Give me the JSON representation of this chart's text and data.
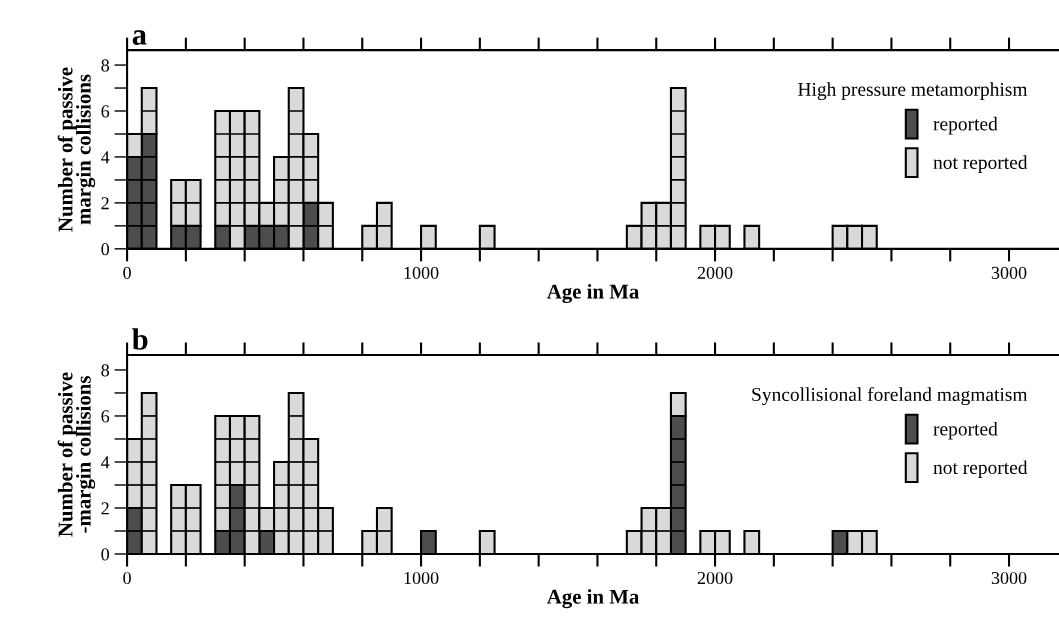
{
  "chart_data": [
    {
      "type": "bar",
      "title": "a",
      "xlabel": "Age in Ma",
      "ylabel": "Number of passive\nmargin collisions",
      "legend_title": "High pressure metamorphism",
      "legend": "right",
      "stacked": true,
      "x": [
        25,
        75,
        125,
        175,
        225,
        275,
        325,
        375,
        425,
        475,
        525,
        575,
        625,
        675,
        725,
        775,
        825,
        875,
        925,
        975,
        1025,
        1075,
        1125,
        1175,
        1225,
        1275,
        1325,
        1375,
        1425,
        1475,
        1525,
        1575,
        1625,
        1675,
        1725,
        1775,
        1825,
        1875,
        1925,
        1975,
        2025,
        2075,
        2125,
        2175,
        2225,
        2275,
        2325,
        2375,
        2425,
        2475,
        2525
      ],
      "series": [
        {
          "name": "reported",
          "color": "#4d4d4d",
          "values": [
            4,
            5,
            0,
            1,
            1,
            0,
            1,
            0,
            1,
            1,
            1,
            0,
            2,
            0,
            0,
            0,
            0,
            0,
            0,
            0,
            0,
            0,
            0,
            0,
            0,
            0,
            0,
            0,
            0,
            0,
            0,
            0,
            0,
            0,
            0,
            0,
            0,
            0,
            0,
            0,
            0,
            0,
            0,
            0,
            0,
            0,
            0,
            0,
            0,
            0,
            0
          ]
        },
        {
          "name": "not reported",
          "color": "#d9d9d9",
          "values": [
            1,
            2,
            0,
            2,
            2,
            0,
            5,
            6,
            5,
            1,
            3,
            7,
            3,
            2,
            0,
            0,
            1,
            2,
            0,
            0,
            1,
            0,
            0,
            0,
            1,
            0,
            0,
            0,
            0,
            0,
            0,
            0,
            0,
            0,
            1,
            2,
            2,
            7,
            0,
            1,
            1,
            0,
            1,
            0,
            0,
            0,
            0,
            0,
            1,
            1,
            1
          ]
        }
      ],
      "xlim": [
        0,
        3170
      ],
      "ylim": [
        0,
        8.65
      ],
      "xticks": [
        0,
        {
          "value": 200,
          "label": null
        },
        {
          "value": 400,
          "label": null
        },
        {
          "value": 600,
          "label": null
        },
        {
          "value": 800,
          "label": null
        },
        1000,
        {
          "value": 1200,
          "label": null
        },
        {
          "value": 1400,
          "label": null
        },
        {
          "value": 1600,
          "label": null
        },
        {
          "value": 1800,
          "label": null
        },
        2000,
        {
          "value": 2200,
          "label": null
        },
        {
          "value": 2400,
          "label": null
        },
        {
          "value": 2600,
          "label": null
        },
        {
          "value": 2800,
          "label": null
        },
        3000
      ],
      "yticks": [
        0,
        {
          "value": 1,
          "label": null
        },
        2,
        {
          "value": 3,
          "label": null
        },
        4,
        {
          "value": 5,
          "label": null
        },
        6,
        {
          "value": 7,
          "label": null
        },
        8
      ]
    },
    {
      "type": "bar",
      "title": "b",
      "xlabel": "Age in Ma",
      "ylabel": "Number of passive\n-margin collisions",
      "legend_title": "Syncollisional foreland magmatism",
      "legend": "right",
      "stacked": true,
      "x": [
        25,
        75,
        125,
        175,
        225,
        275,
        325,
        375,
        425,
        475,
        525,
        575,
        625,
        675,
        725,
        775,
        825,
        875,
        925,
        975,
        1025,
        1075,
        1125,
        1175,
        1225,
        1275,
        1325,
        1375,
        1425,
        1475,
        1525,
        1575,
        1625,
        1675,
        1725,
        1775,
        1825,
        1875,
        1925,
        1975,
        2025,
        2075,
        2125,
        2175,
        2225,
        2275,
        2325,
        2375,
        2425,
        2475,
        2525
      ],
      "series": [
        {
          "name": "reported",
          "color": "#4d4d4d",
          "values": [
            2,
            0,
            0,
            0,
            0,
            0,
            1,
            3,
            0,
            1,
            0,
            0,
            0,
            0,
            0,
            0,
            0,
            0,
            0,
            0,
            1,
            0,
            0,
            0,
            0,
            0,
            0,
            0,
            0,
            0,
            0,
            0,
            0,
            0,
            0,
            0,
            0,
            6,
            0,
            0,
            0,
            0,
            0,
            0,
            0,
            0,
            0,
            0,
            1,
            0,
            0
          ]
        },
        {
          "name": "not reported",
          "color": "#d9d9d9",
          "values": [
            3,
            7,
            0,
            3,
            3,
            0,
            5,
            3,
            6,
            1,
            4,
            7,
            5,
            2,
            0,
            0,
            1,
            2,
            0,
            0,
            0,
            0,
            0,
            0,
            1,
            0,
            0,
            0,
            0,
            0,
            0,
            0,
            0,
            0,
            1,
            2,
            2,
            1,
            0,
            1,
            1,
            0,
            1,
            0,
            0,
            0,
            0,
            0,
            0,
            1,
            1
          ]
        }
      ],
      "xlim": [
        0,
        3170
      ],
      "ylim": [
        0,
        8.65
      ],
      "xticks": [
        0,
        {
          "value": 200,
          "label": null
        },
        {
          "value": 400,
          "label": null
        },
        {
          "value": 600,
          "label": null
        },
        {
          "value": 800,
          "label": null
        },
        1000,
        {
          "value": 1200,
          "label": null
        },
        {
          "value": 1400,
          "label": null
        },
        {
          "value": 1600,
          "label": null
        },
        {
          "value": 1800,
          "label": null
        },
        2000,
        {
          "value": 2200,
          "label": null
        },
        {
          "value": 2400,
          "label": null
        },
        {
          "value": 2600,
          "label": null
        },
        {
          "value": 2800,
          "label": null
        },
        3000
      ],
      "yticks": [
        0,
        {
          "value": 1,
          "label": null
        },
        2,
        {
          "value": 3,
          "label": null
        },
        4,
        {
          "value": 5,
          "label": null
        },
        6,
        {
          "value": 7,
          "label": null
        },
        8
      ]
    }
  ]
}
